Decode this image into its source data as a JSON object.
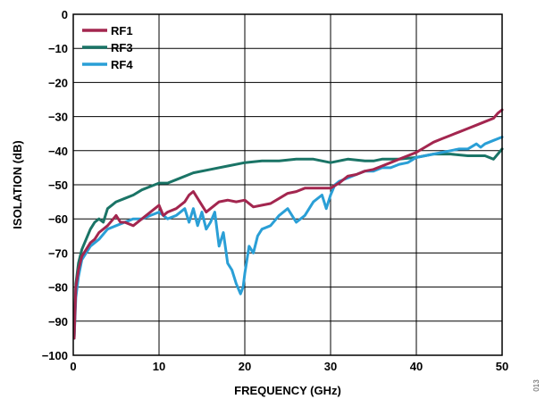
{
  "chart_data": {
    "type": "line",
    "xlabel": "FREQUENCY (GHz)",
    "ylabel": "ISOLATION (dB)",
    "xlim": [
      0,
      50
    ],
    "ylim": [
      -100,
      0
    ],
    "xticks": [
      0,
      10,
      20,
      30,
      40,
      50
    ],
    "yticks": [
      0,
      -10,
      -20,
      -30,
      -40,
      -50,
      -60,
      -70,
      -80,
      -90,
      -100
    ],
    "grid": true,
    "legend_position": "top-left",
    "figure_number": "013",
    "series": [
      {
        "name": "RF1",
        "color": "#a3264f",
        "x": [
          0.1,
          0.3,
          0.6,
          1,
          1.5,
          2,
          2.5,
          3,
          3.5,
          4,
          5,
          5.5,
          6,
          7,
          8,
          9,
          10,
          10.5,
          11,
          12,
          13,
          13.5,
          14,
          15,
          15.5,
          16,
          17,
          18,
          19,
          20,
          21,
          22,
          23,
          24,
          25,
          26,
          27,
          28,
          29,
          30,
          31,
          32,
          33,
          34,
          35,
          36,
          37,
          38,
          39,
          40,
          41,
          42,
          43,
          44,
          45,
          46,
          47,
          48,
          49,
          49.5,
          50
        ],
        "values": [
          -95,
          -80,
          -75,
          -71,
          -69,
          -67,
          -66,
          -64,
          -63,
          -62,
          -59,
          -61,
          -61,
          -62,
          -60,
          -58,
          -56,
          -59,
          -58,
          -57,
          -55,
          -53,
          -52,
          -56,
          -58,
          -57,
          -55,
          -54.5,
          -55,
          -54.5,
          -56.5,
          -56,
          -55.5,
          -54,
          -52.5,
          -52,
          -51,
          -51,
          -51,
          -51,
          -49.5,
          -47.5,
          -47,
          -46,
          -45.5,
          -44.5,
          -43.5,
          -42.5,
          -41.5,
          -40.5,
          -39,
          -37.5,
          -36.5,
          -35.5,
          -34.5,
          -33.5,
          -32.5,
          -31.5,
          -30.5,
          -29,
          -28
        ]
      },
      {
        "name": "RF3",
        "color": "#1a7466",
        "x": [
          0.1,
          0.3,
          0.6,
          1,
          1.5,
          2,
          2.5,
          3,
          3.5,
          4,
          5,
          6,
          7,
          8,
          9,
          10,
          11,
          12,
          14,
          16,
          18,
          20,
          22,
          24,
          26,
          28,
          30,
          32,
          34,
          35,
          36,
          38,
          40,
          42,
          44,
          46,
          48,
          49,
          50
        ],
        "values": [
          -95,
          -79,
          -73,
          -69,
          -66,
          -63,
          -61,
          -60,
          -61,
          -57,
          -55,
          -54,
          -53,
          -51.5,
          -50.5,
          -49.5,
          -49.5,
          -48.5,
          -46.5,
          -45.5,
          -44.5,
          -43.5,
          -43,
          -43,
          -42.5,
          -42.5,
          -43.5,
          -42.5,
          -43,
          -43,
          -42.5,
          -42.5,
          -42,
          -41,
          -41,
          -41.5,
          -41.5,
          -42.5,
          -39.5
        ]
      },
      {
        "name": "RF4",
        "color": "#2a9fd6",
        "x": [
          0.1,
          0.3,
          0.6,
          1,
          1.5,
          2,
          3,
          4,
          5,
          6,
          7,
          8,
          9,
          10,
          11,
          12,
          13,
          13.5,
          14,
          14.5,
          15,
          15.5,
          16,
          16.5,
          17,
          17.5,
          18,
          18.5,
          19,
          19.5,
          19.8,
          20,
          20.5,
          21,
          21.5,
          22,
          23,
          24,
          25,
          26,
          27,
          28,
          29,
          29.5,
          30,
          30.5,
          31,
          32,
          33,
          34,
          35,
          36,
          37,
          38,
          39,
          40,
          41,
          42,
          43,
          44,
          45,
          46,
          47,
          47.5,
          48,
          49,
          50
        ],
        "values": [
          -95,
          -83,
          -77,
          -72,
          -70,
          -68,
          -66,
          -63,
          -62,
          -61,
          -60,
          -60,
          -59,
          -58,
          -60,
          -59,
          -57,
          -61,
          -57,
          -62,
          -58,
          -63,
          -61,
          -58,
          -68,
          -64,
          -73,
          -75,
          -79,
          -82,
          -80,
          -76,
          -68,
          -70,
          -65,
          -63,
          -62,
          -59,
          -57,
          -61,
          -59,
          -55,
          -53,
          -57,
          -53,
          -50,
          -49,
          -48,
          -47,
          -46,
          -46,
          -45,
          -45,
          -44,
          -43.5,
          -42,
          -41.5,
          -41,
          -40.5,
          -40,
          -39.5,
          -39.5,
          -38,
          -39,
          -38,
          -37,
          -36
        ]
      }
    ]
  }
}
